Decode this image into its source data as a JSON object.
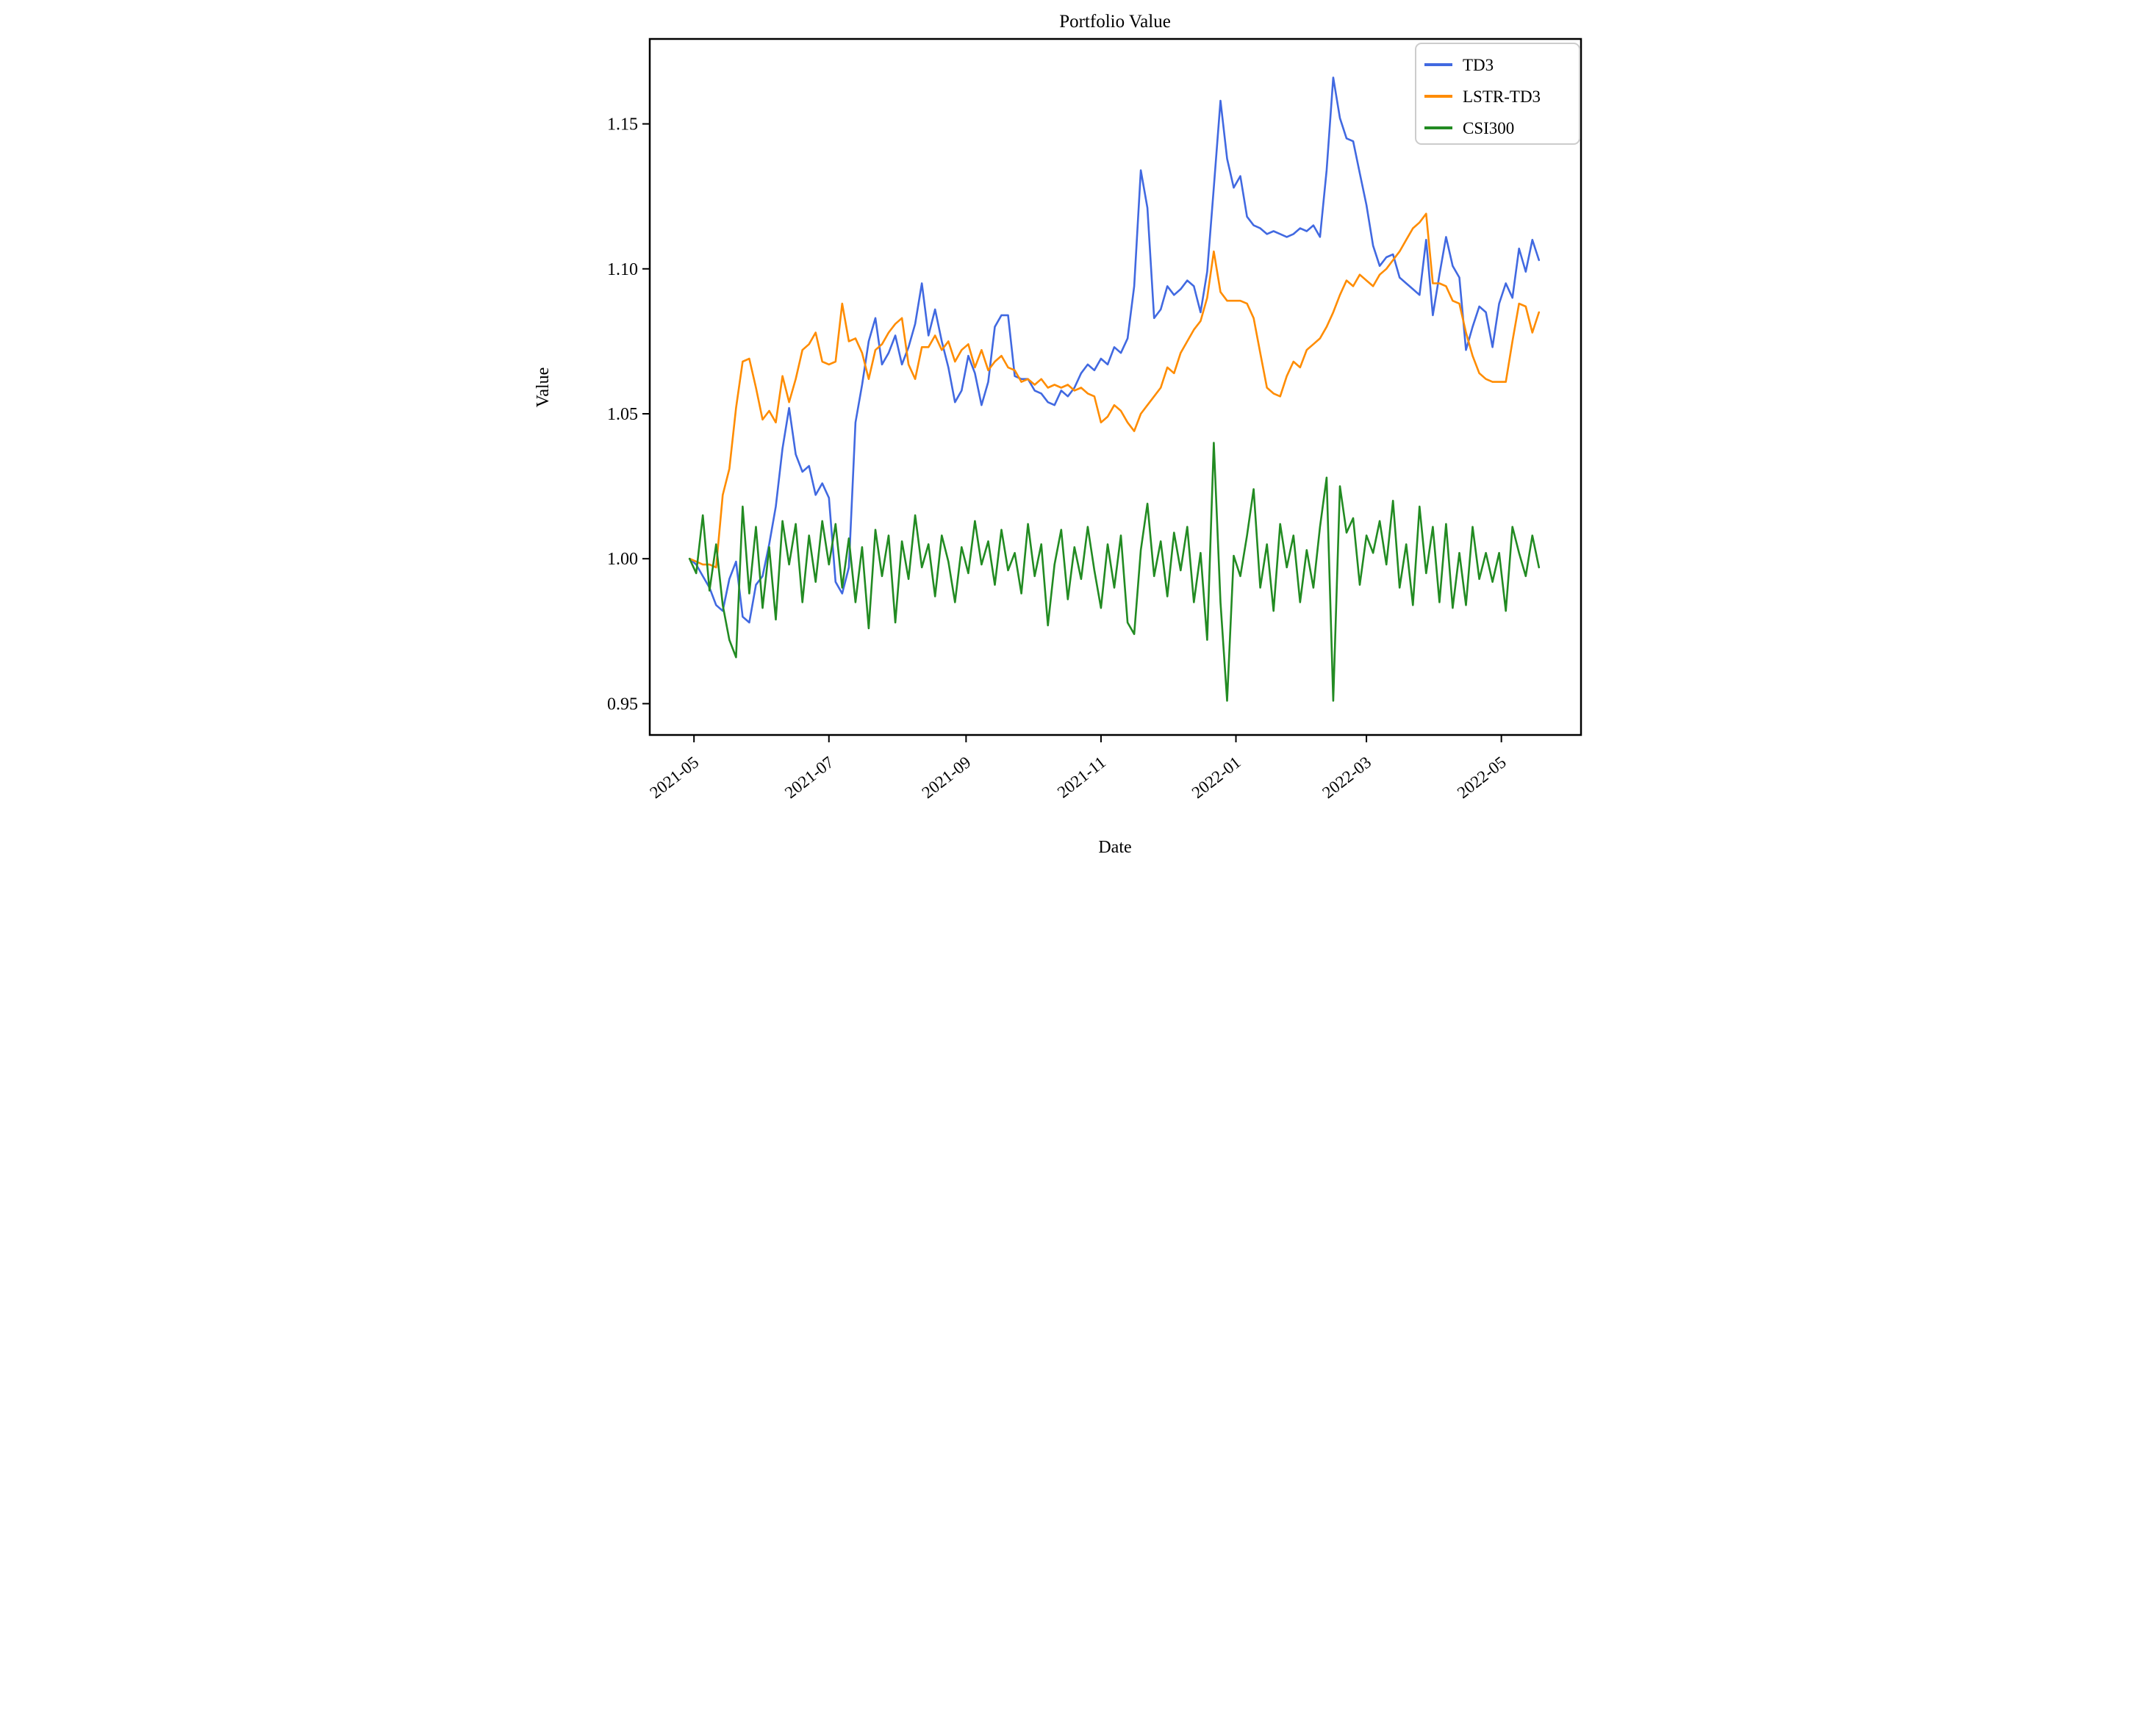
{
  "chart_data": {
    "type": "line",
    "title": "Portfolio Value",
    "xlabel": "Date",
    "ylabel": "Value",
    "legend_position": "upper right",
    "grid": false,
    "x_ticks": [
      "2021-05",
      "2021-07",
      "2021-09",
      "2021-11",
      "2022-01",
      "2022-03",
      "2022-05"
    ],
    "y_ticks": [
      0.95,
      1.0,
      1.05,
      1.1,
      1.15
    ],
    "xlim": [
      "2021-04-11",
      "2022-06-06"
    ],
    "ylim": [
      0.9392,
      1.1793
    ],
    "dates": [
      "2021-04-29",
      "2021-05-02",
      "2021-05-05",
      "2021-05-08",
      "2021-05-11",
      "2021-05-14",
      "2021-05-17",
      "2021-05-20",
      "2021-05-23",
      "2021-05-26",
      "2021-05-29",
      "2021-06-01",
      "2021-06-04",
      "2021-06-07",
      "2021-06-10",
      "2021-06-13",
      "2021-06-16",
      "2021-06-19",
      "2021-06-22",
      "2021-06-25",
      "2021-06-28",
      "2021-07-01",
      "2021-07-04",
      "2021-07-07",
      "2021-07-10",
      "2021-07-13",
      "2021-07-16",
      "2021-07-19",
      "2021-07-22",
      "2021-07-25",
      "2021-07-28",
      "2021-07-31",
      "2021-08-03",
      "2021-08-06",
      "2021-08-09",
      "2021-08-12",
      "2021-08-15",
      "2021-08-18",
      "2021-08-21",
      "2021-08-24",
      "2021-08-27",
      "2021-08-30",
      "2021-09-02",
      "2021-09-05",
      "2021-09-08",
      "2021-09-11",
      "2021-09-14",
      "2021-09-17",
      "2021-09-20",
      "2021-09-23",
      "2021-09-26",
      "2021-09-29",
      "2021-10-02",
      "2021-10-05",
      "2021-10-08",
      "2021-10-11",
      "2021-10-14",
      "2021-10-17",
      "2021-10-20",
      "2021-10-23",
      "2021-10-26",
      "2021-10-29",
      "2021-11-01",
      "2021-11-04",
      "2021-11-07",
      "2021-11-10",
      "2021-11-13",
      "2021-11-16",
      "2021-11-19",
      "2021-11-22",
      "2021-11-25",
      "2021-11-28",
      "2021-12-01",
      "2021-12-04",
      "2021-12-07",
      "2021-12-10",
      "2021-12-13",
      "2021-12-16",
      "2021-12-19",
      "2021-12-22",
      "2021-12-25",
      "2021-12-28",
      "2021-12-31",
      "2022-01-03",
      "2022-01-06",
      "2022-01-09",
      "2022-01-12",
      "2022-01-15",
      "2022-01-18",
      "2022-01-21",
      "2022-01-24",
      "2022-01-27",
      "2022-01-30",
      "2022-02-02",
      "2022-02-05",
      "2022-02-08",
      "2022-02-11",
      "2022-02-14",
      "2022-02-17",
      "2022-02-20",
      "2022-02-23",
      "2022-02-26",
      "2022-03-01",
      "2022-03-04",
      "2022-03-07",
      "2022-03-10",
      "2022-03-13",
      "2022-03-16",
      "2022-03-19",
      "2022-03-22",
      "2022-03-25",
      "2022-03-28",
      "2022-03-31",
      "2022-04-03",
      "2022-04-06",
      "2022-04-09",
      "2022-04-12",
      "2022-04-15",
      "2022-04-18",
      "2022-04-21",
      "2022-04-24",
      "2022-04-27",
      "2022-04-30",
      "2022-05-03",
      "2022-05-06",
      "2022-05-09",
      "2022-05-12",
      "2022-05-15",
      "2022-05-18"
    ],
    "series": [
      {
        "name": "TD3",
        "color": "#4169e1",
        "values": [
          1.0,
          0.998,
          0.994,
          0.99,
          0.984,
          0.982,
          0.993,
          0.999,
          0.98,
          0.978,
          0.991,
          0.994,
          1.005,
          1.018,
          1.038,
          1.052,
          1.036,
          1.03,
          1.032,
          1.022,
          1.026,
          1.021,
          0.992,
          0.988,
          0.997,
          1.047,
          1.06,
          1.075,
          1.083,
          1.067,
          1.071,
          1.077,
          1.067,
          1.073,
          1.081,
          1.095,
          1.077,
          1.086,
          1.075,
          1.066,
          1.054,
          1.058,
          1.07,
          1.064,
          1.053,
          1.061,
          1.08,
          1.084,
          1.084,
          1.063,
          1.062,
          1.062,
          1.058,
          1.057,
          1.054,
          1.053,
          1.058,
          1.056,
          1.059,
          1.064,
          1.067,
          1.065,
          1.069,
          1.067,
          1.073,
          1.071,
          1.076,
          1.094,
          1.134,
          1.121,
          1.083,
          1.086,
          1.094,
          1.091,
          1.093,
          1.096,
          1.094,
          1.085,
          1.099,
          1.128,
          1.158,
          1.138,
          1.128,
          1.132,
          1.118,
          1.115,
          1.114,
          1.112,
          1.113,
          1.112,
          1.111,
          1.112,
          1.114,
          1.113,
          1.115,
          1.111,
          1.134,
          1.166,
          1.152,
          1.145,
          1.144,
          1.133,
          1.122,
          1.108,
          1.101,
          1.104,
          1.105,
          1.097,
          1.095,
          1.093,
          1.091,
          1.11,
          1.084,
          1.098,
          1.111,
          1.101,
          1.097,
          1.072,
          1.08,
          1.087,
          1.085,
          1.073,
          1.088,
          1.095,
          1.09,
          1.107,
          1.099,
          1.11,
          1.103
        ]
      },
      {
        "name": "LSTR-TD3",
        "color": "#ff8c00",
        "values": [
          1.0,
          0.999,
          0.998,
          0.998,
          0.997,
          1.022,
          1.031,
          1.052,
          1.068,
          1.069,
          1.059,
          1.048,
          1.051,
          1.047,
          1.063,
          1.054,
          1.062,
          1.072,
          1.074,
          1.078,
          1.068,
          1.067,
          1.068,
          1.088,
          1.075,
          1.076,
          1.071,
          1.062,
          1.072,
          1.074,
          1.078,
          1.081,
          1.083,
          1.067,
          1.062,
          1.073,
          1.073,
          1.077,
          1.072,
          1.075,
          1.068,
          1.072,
          1.074,
          1.066,
          1.072,
          1.065,
          1.068,
          1.07,
          1.066,
          1.065,
          1.061,
          1.062,
          1.06,
          1.062,
          1.059,
          1.06,
          1.059,
          1.06,
          1.058,
          1.059,
          1.057,
          1.056,
          1.047,
          1.049,
          1.053,
          1.051,
          1.047,
          1.044,
          1.05,
          1.053,
          1.056,
          1.059,
          1.066,
          1.064,
          1.071,
          1.075,
          1.079,
          1.082,
          1.09,
          1.106,
          1.092,
          1.089,
          1.089,
          1.089,
          1.088,
          1.083,
          1.071,
          1.059,
          1.057,
          1.056,
          1.063,
          1.068,
          1.066,
          1.072,
          1.074,
          1.076,
          1.08,
          1.085,
          1.091,
          1.096,
          1.094,
          1.098,
          1.096,
          1.094,
          1.098,
          1.1,
          1.103,
          1.106,
          1.11,
          1.114,
          1.116,
          1.119,
          1.095,
          1.095,
          1.094,
          1.089,
          1.088,
          1.078,
          1.07,
          1.064,
          1.062,
          1.061,
          1.061,
          1.061,
          1.075,
          1.088,
          1.087,
          1.078,
          1.085
        ]
      },
      {
        "name": "CSI300",
        "color": "#228b22",
        "values": [
          1.0,
          0.995,
          1.015,
          0.989,
          1.005,
          0.984,
          0.972,
          0.966,
          1.018,
          0.988,
          1.011,
          0.983,
          1.004,
          0.979,
          1.013,
          0.998,
          1.012,
          0.985,
          1.008,
          0.992,
          1.013,
          0.998,
          1.012,
          0.99,
          1.007,
          0.985,
          1.004,
          0.976,
          1.01,
          0.994,
          1.008,
          0.978,
          1.006,
          0.993,
          1.015,
          0.997,
          1.005,
          0.987,
          1.008,
          0.999,
          0.985,
          1.004,
          0.995,
          1.013,
          0.998,
          1.006,
          0.991,
          1.01,
          0.996,
          1.002,
          0.988,
          1.012,
          0.994,
          1.005,
          0.977,
          0.998,
          1.01,
          0.986,
          1.004,
          0.993,
          1.011,
          0.996,
          0.983,
          1.005,
          0.99,
          1.008,
          0.978,
          0.974,
          1.003,
          1.019,
          0.994,
          1.006,
          0.987,
          1.009,
          0.996,
          1.011,
          0.985,
          1.002,
          0.972,
          1.04,
          0.985,
          0.951,
          1.001,
          0.994,
          1.008,
          1.024,
          0.99,
          1.005,
          0.982,
          1.012,
          0.997,
          1.008,
          0.985,
          1.003,
          0.99,
          1.011,
          1.028,
          0.951,
          1.025,
          1.009,
          1.014,
          0.991,
          1.008,
          1.002,
          1.013,
          0.998,
          1.02,
          0.99,
          1.005,
          0.984,
          1.018,
          0.995,
          1.011,
          0.985,
          1.012,
          0.983,
          1.002,
          0.984,
          1.011,
          0.993,
          1.002,
          0.992,
          1.002,
          0.982,
          1.011,
          1.002,
          0.994,
          1.008,
          0.997
        ]
      }
    ]
  }
}
